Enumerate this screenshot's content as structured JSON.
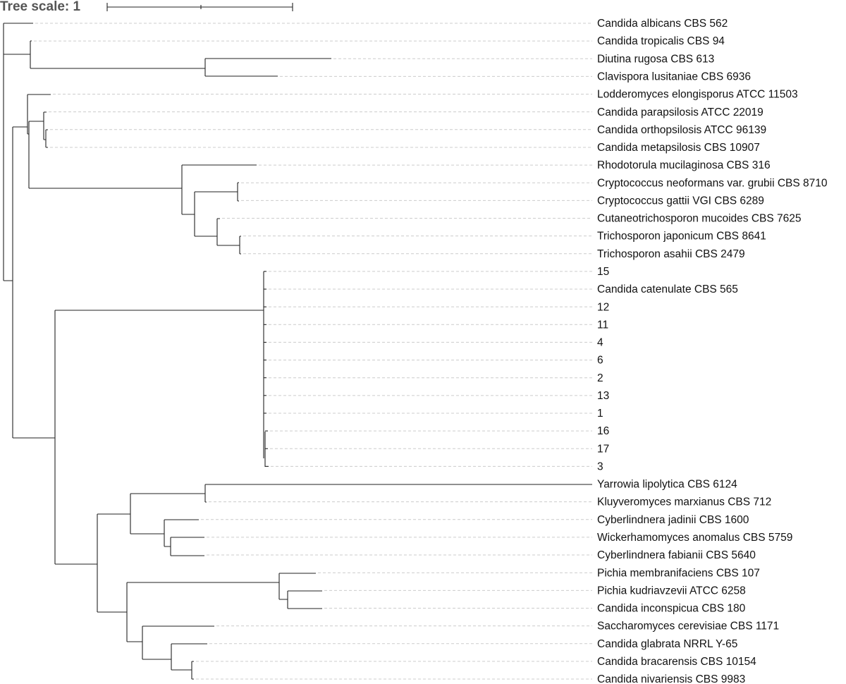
{
  "header": {
    "title": "Tree scale: 1"
  },
  "leaves": [
    "Candida albicans CBS 562",
    "Candida tropicalis CBS 94",
    "Diutina rugosa CBS 613",
    "Clavispora lusitaniae CBS 6936",
    "Lodderomyces elongisporus ATCC 11503",
    "Candida parapsilosis ATCC 22019",
    "Candida orthopsilosis ATCC 96139",
    "Candida metapsilosis CBS 10907",
    "Rhodotorula mucilaginosa CBS 316",
    "Cryptococcus neoformans var. grubii CBS 8710",
    "Cryptococcus gattii VGI CBS 6289",
    "Cutaneotrichosporon mucoides CBS 7625",
    "Trichosporon japonicum CBS 8641",
    "Trichosporon asahii CBS 2479",
    "15",
    "Candida catenulate CBS 565",
    "12",
    "11",
    "4",
    "6",
    "2",
    "13",
    "1",
    "16",
    "17",
    "3",
    "Yarrowia lipolytica CBS 6124",
    "Kluyveromyces marxianus CBS 712",
    "Cyberlindnera jadinii CBS 1600",
    "Wickerhamomyces anomalus CBS 5759",
    "Cyberlindnera fabianii CBS 5640",
    "Pichia membranifaciens CBS 107",
    "Pichia kudriavzevii ATCC 6258",
    "Candida inconspicua CBS 180",
    "Saccharomyces cerevisiae CBS 1171",
    "Candida glabrata NRRL Y-65",
    "Candida bracarensis CBS 10154",
    "Candida nivariensis CBS 9983"
  ]
}
